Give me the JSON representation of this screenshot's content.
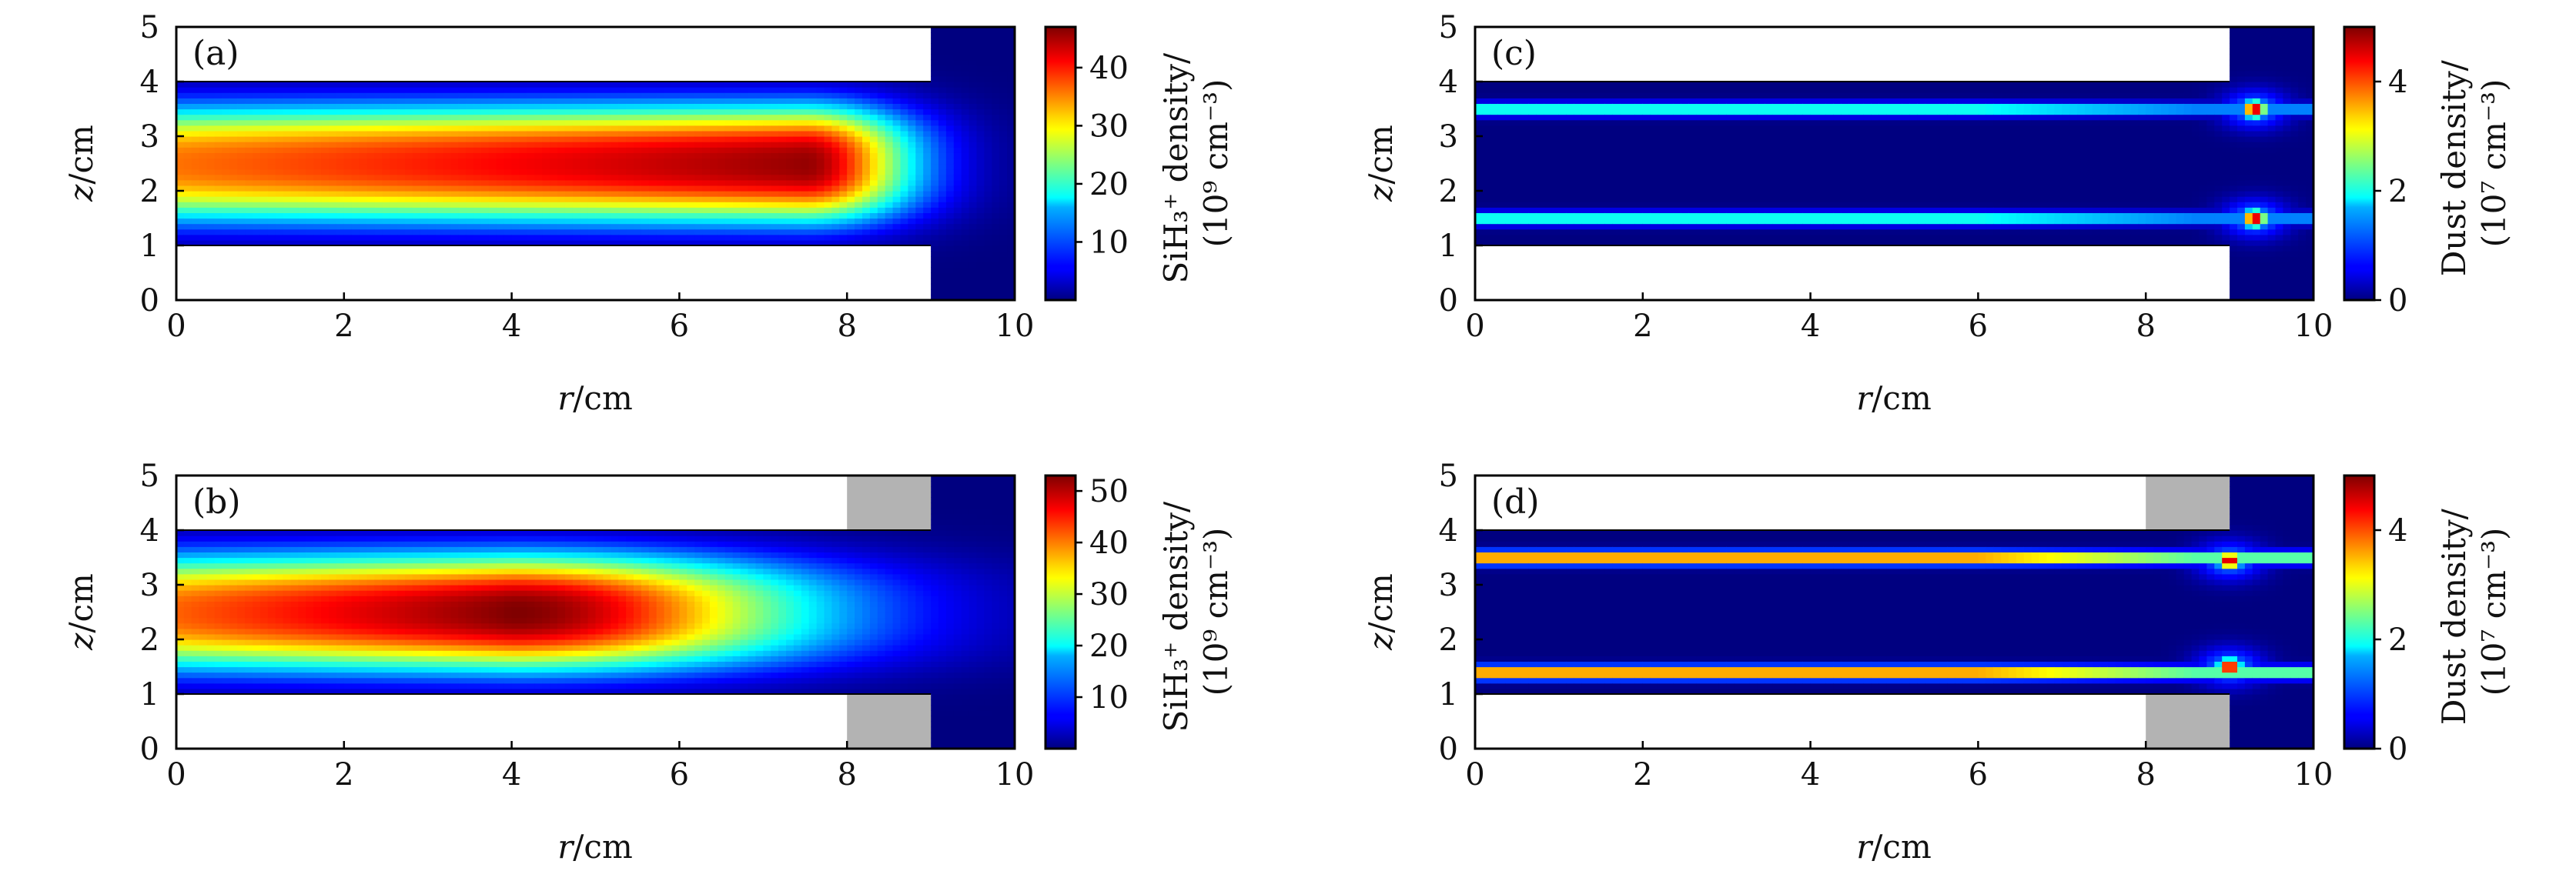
{
  "chart_data": [
    {
      "type": "heatmap",
      "panel_label": "(a)",
      "xlabel": {
        "var": "r",
        "unit": "/cm"
      },
      "ylabel": {
        "var": "z",
        "unit": "/cm"
      },
      "xlim": [
        0,
        10
      ],
      "ylim": [
        0,
        5
      ],
      "xticks": [
        "0",
        "2",
        "4",
        "6",
        "8",
        "10"
      ],
      "yticks": [
        "0",
        "1",
        "2",
        "3",
        "4",
        "5"
      ],
      "colorbar": {
        "label_line1": "SiH₃⁺ density/",
        "label_line2": "(10⁹ cm⁻³)",
        "min": 0,
        "max": 47,
        "ticks": [
          "10",
          "20",
          "30",
          "40"
        ],
        "tick_values": [
          10,
          20,
          30,
          40
        ]
      },
      "field": {
        "kind": "ion",
        "peak": 46,
        "peak_r": 7.5,
        "edge_r": 9.5,
        "band_z": [
          1,
          4
        ]
      },
      "regions": {
        "plasma_z": [
          1,
          4
        ],
        "plasma_r": [
          0,
          9
        ],
        "open_r": [
          9,
          10
        ],
        "blocks": []
      }
    },
    {
      "type": "heatmap",
      "panel_label": "(b)",
      "xlabel": {
        "var": "r",
        "unit": "/cm"
      },
      "ylabel": {
        "var": "z",
        "unit": "/cm"
      },
      "xlim": [
        0,
        10
      ],
      "ylim": [
        0,
        5
      ],
      "xticks": [
        "0",
        "2",
        "4",
        "6",
        "8",
        "10"
      ],
      "yticks": [
        "0",
        "1",
        "2",
        "3",
        "4",
        "5"
      ],
      "colorbar": {
        "label_line1": "SiH₃⁺ density/",
        "label_line2": "(10⁹ cm⁻³)",
        "min": 0,
        "max": 53,
        "ticks": [
          "10",
          "20",
          "30",
          "40",
          "50"
        ],
        "tick_values": [
          10,
          20,
          30,
          40,
          50
        ]
      },
      "field": {
        "kind": "ion",
        "peak": 53,
        "peak_r": 4,
        "edge_r": 9.5,
        "band_z": [
          1,
          4
        ]
      },
      "regions": {
        "plasma_z": [
          1,
          4
        ],
        "plasma_r": [
          0,
          9
        ],
        "open_r": [
          9,
          10
        ],
        "blocks": [
          {
            "r": [
              8,
              9
            ],
            "z": [
              0,
              1
            ]
          },
          {
            "r": [
              8,
              9
            ],
            "z": [
              4,
              5
            ]
          }
        ]
      }
    },
    {
      "type": "heatmap",
      "panel_label": "(c)",
      "xlabel": {
        "var": "r",
        "unit": "/cm"
      },
      "ylabel": {
        "var": "z",
        "unit": "/cm"
      },
      "xlim": [
        0,
        10
      ],
      "ylim": [
        0,
        5
      ],
      "xticks": [
        "0",
        "2",
        "4",
        "6",
        "8",
        "10"
      ],
      "yticks": [
        "0",
        "1",
        "2",
        "3",
        "4",
        "5"
      ],
      "colorbar": {
        "label_line1": "Dust density/",
        "label_line2": "(10⁷ cm⁻³)",
        "min": 0,
        "max": 5,
        "ticks": [
          "0",
          "2",
          "4"
        ],
        "tick_values": [
          0,
          2,
          4
        ]
      },
      "field": {
        "kind": "dust",
        "layers_z": [
          3.5,
          1.5
        ],
        "layer_value": 2.3,
        "hotspots": [
          {
            "r": 9.3,
            "z": 3.5,
            "v": 5
          },
          {
            "r": 9.3,
            "z": 1.5,
            "v": 5
          }
        ]
      },
      "regions": {
        "plasma_z": [
          1,
          4
        ],
        "plasma_r": [
          0,
          9
        ],
        "open_r": [
          9,
          10
        ],
        "blocks": []
      }
    },
    {
      "type": "heatmap",
      "panel_label": "(d)",
      "xlabel": {
        "var": "r",
        "unit": "/cm"
      },
      "ylabel": {
        "var": "z",
        "unit": "/cm"
      },
      "xlim": [
        0,
        10
      ],
      "ylim": [
        0,
        5
      ],
      "xticks": [
        "0",
        "2",
        "4",
        "6",
        "8",
        "10"
      ],
      "yticks": [
        "0",
        "1",
        "2",
        "3",
        "4",
        "5"
      ],
      "colorbar": {
        "label_line1": "Dust density/",
        "label_line2": "(10⁷ cm⁻³)",
        "min": 0,
        "max": 5,
        "ticks": [
          "0",
          "2",
          "4"
        ],
        "tick_values": [
          0,
          2,
          4
        ]
      },
      "field": {
        "kind": "dust",
        "layers_z": [
          3.5,
          1.4
        ],
        "layer_value": 4.2,
        "hotspots": [
          {
            "r": 9.0,
            "z": 3.45,
            "v": 5
          },
          {
            "r": 9.0,
            "z": 1.5,
            "v": 5
          }
        ]
      },
      "regions": {
        "plasma_z": [
          1,
          4
        ],
        "plasma_r": [
          0,
          9
        ],
        "open_r": [
          9,
          10
        ],
        "blocks": [
          {
            "r": [
              8,
              9
            ],
            "z": [
              0,
              1
            ]
          },
          {
            "r": [
              8,
              9
            ],
            "z": [
              4,
              5
            ]
          }
        ]
      }
    }
  ]
}
